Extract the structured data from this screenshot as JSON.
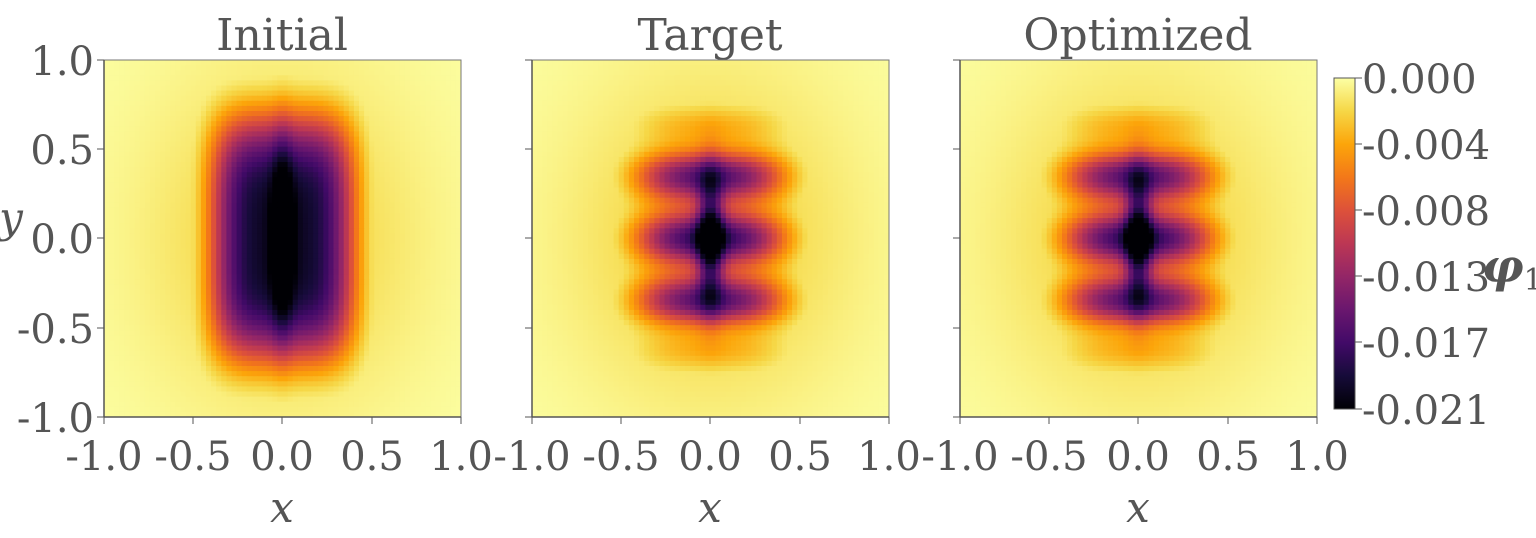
{
  "chart_data": [
    {
      "type": "heatmap",
      "title": "Initial",
      "xlabel": "x",
      "ylabel": "y",
      "xlim": [
        -1.0,
        1.0
      ],
      "ylim": [
        -1.0,
        1.0
      ],
      "xticks": [
        "-1.0",
        "-0.5",
        "0.0",
        "0.5",
        "1.0"
      ],
      "yticks": [
        "1.0",
        "0.5",
        "0.0",
        "-0.5",
        "-1.0"
      ],
      "field_min": -0.021,
      "field_max": 0.0,
      "pattern": "single-lobe"
    },
    {
      "type": "heatmap",
      "title": "Target",
      "xlabel": "x",
      "xlim": [
        -1.0,
        1.0
      ],
      "ylim": [
        -1.0,
        1.0
      ],
      "xticks": [
        "-1.0",
        "-0.5",
        "0.0",
        "0.5",
        "1.0"
      ],
      "field_min": -0.021,
      "field_max": 0.0,
      "pattern": "banded"
    },
    {
      "type": "heatmap",
      "title": "Optimized",
      "xlabel": "x",
      "xlim": [
        -1.0,
        1.0
      ],
      "ylim": [
        -1.0,
        1.0
      ],
      "xticks": [
        "-1.0",
        "-0.5",
        "0.0",
        "0.5",
        "1.0"
      ],
      "field_min": -0.021,
      "field_max": 0.0,
      "pattern": "banded"
    }
  ],
  "colorbar": {
    "label": "φ",
    "label_sub": "1",
    "colormap": "inferno",
    "ticks": [
      "0.000",
      "-0.004",
      "-0.008",
      "-0.013",
      "-0.017",
      "-0.021"
    ],
    "tick_values": [
      0.0,
      -0.004,
      -0.008,
      -0.013,
      -0.017,
      -0.021
    ]
  },
  "colors": {
    "text": "#555555",
    "axis": "#555555"
  }
}
